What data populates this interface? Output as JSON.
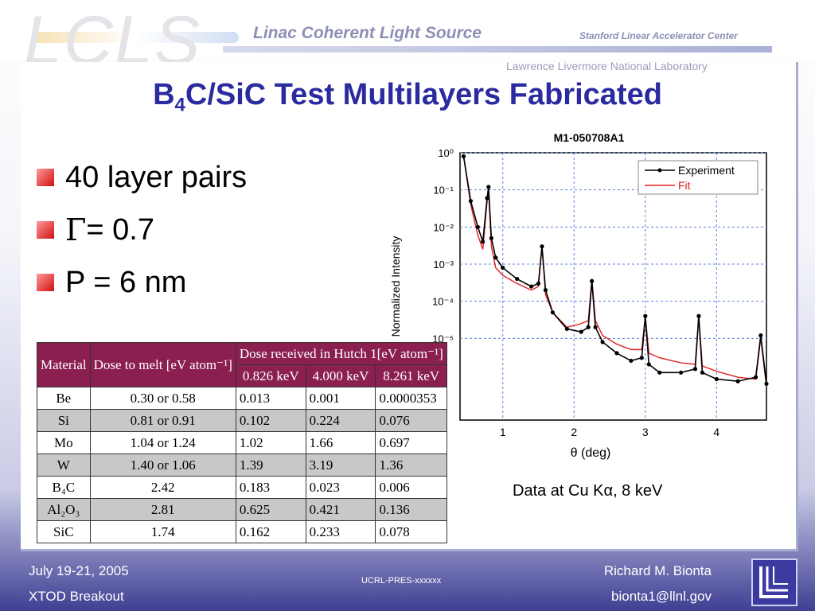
{
  "header": {
    "logo_text": "LCLS",
    "subtitle": "Linac Coherent Light Source",
    "org": "Stanford Linear Accelerator Center",
    "lab": "Lawrence Livermore National Laboratory"
  },
  "slide": {
    "title_pre": "B",
    "title_sub": "4",
    "title_post": "C/SiC Test Multilayers Fabricated",
    "bullets": [
      {
        "text": "40 layer pairs"
      },
      {
        "symbol": "Γ",
        "text": " = 0.7"
      },
      {
        "text": "P = 6 nm"
      }
    ],
    "caption": "Data at Cu Kα, 8 keV"
  },
  "table": {
    "header_material": "Material",
    "header_dose_melt": "Dose to melt [eV atom⁻¹]",
    "header_dose_hutch": "Dose received in Hutch 1[eV atom⁻¹]",
    "energies": [
      "0.826 keV",
      "4.000 keV",
      "8.261 keV"
    ],
    "rows": [
      {
        "material": "Be",
        "melt": "0.30  or 0.58",
        "e1": "0.013",
        "e2": "0.001",
        "e3": "0.0000353"
      },
      {
        "material": "Si",
        "melt": "0.81 or 0.91",
        "e1": "0.102",
        "e2": "0.224",
        "e3": "0.076"
      },
      {
        "material": "Mo",
        "melt": "1.04 or 1.24",
        "e1": "1.02",
        "e2": "1.66",
        "e3": "0.697"
      },
      {
        "material": "W",
        "melt": "1.40 or 1.06",
        "e1": "1.39",
        "e2": "3.19",
        "e3": "1.36"
      },
      {
        "material": "B₄C",
        "melt": "2.42",
        "e1": "0.183",
        "e2": "0.023",
        "e3": "0.006"
      },
      {
        "material": "Al₂O₃",
        "melt": "2.81",
        "e1": "0.625",
        "e2": "0.421",
        "e3": "0.136"
      },
      {
        "material": "SiC",
        "melt": "1.74",
        "e1": "0.162",
        "e2": "0.233",
        "e3": "0.078"
      }
    ]
  },
  "chart_data": {
    "type": "line",
    "title": "M1-050708A1",
    "xlabel": "θ (deg)",
    "ylabel": "Normalized Intensity",
    "xlim": [
      0.4,
      4.7
    ],
    "ylim_log10": [
      -7.2,
      0
    ],
    "yscale": "log",
    "x_ticks": [
      "1",
      "2",
      "3",
      "4"
    ],
    "y_ticks": [
      "10⁰",
      "10⁻¹",
      "10⁻²",
      "10⁻³",
      "10⁻⁴",
      "10⁻⁵"
    ],
    "legend_position": "top-right",
    "series": [
      {
        "name": "Experiment",
        "color": "#000000",
        "x": [
          0.45,
          0.55,
          0.65,
          0.72,
          0.78,
          0.8,
          0.84,
          0.9,
          1.0,
          1.2,
          1.4,
          1.5,
          1.55,
          1.6,
          1.7,
          1.9,
          2.1,
          2.2,
          2.25,
          2.3,
          2.4,
          2.6,
          2.8,
          2.95,
          3.0,
          3.05,
          3.2,
          3.5,
          3.7,
          3.75,
          3.8,
          4.0,
          4.3,
          4.55,
          4.62,
          4.7
        ],
        "y": [
          0.8,
          0.05,
          0.01,
          0.004,
          0.06,
          0.12,
          0.005,
          0.0015,
          0.0008,
          0.0004,
          0.00025,
          0.0003,
          0.003,
          0.0002,
          5e-05,
          1.8e-05,
          1.5e-05,
          2e-05,
          0.00035,
          2e-05,
          8e-06,
          4e-06,
          2.5e-06,
          3e-06,
          4e-05,
          2e-06,
          1.2e-06,
          1.2e-06,
          1.5e-06,
          4e-05,
          1.2e-06,
          8e-07,
          7e-07,
          9e-07,
          1.2e-05,
          6e-07
        ]
      },
      {
        "name": "Fit",
        "color": "#e02020",
        "x": [
          0.45,
          0.55,
          0.65,
          0.72,
          0.78,
          0.8,
          0.84,
          0.9,
          1.0,
          1.2,
          1.4,
          1.5,
          1.55,
          1.6,
          1.7,
          1.9,
          2.1,
          2.2,
          2.25,
          2.3,
          2.4,
          2.6,
          2.8,
          2.95,
          3.0,
          3.05,
          3.2,
          3.5,
          3.7,
          3.75,
          3.8,
          4.0,
          4.3,
          4.55,
          4.62,
          4.7
        ],
        "y": [
          0.8,
          0.04,
          0.006,
          0.0025,
          0.05,
          0.1,
          0.003,
          0.0008,
          0.0005,
          0.0003,
          0.0002,
          0.00025,
          0.003,
          0.00015,
          5e-05,
          2e-05,
          2.5e-05,
          3e-05,
          0.0004,
          3e-05,
          1.2e-05,
          7e-06,
          5e-06,
          5e-06,
          4e-05,
          4e-06,
          3e-06,
          2.2e-06,
          2e-06,
          4e-05,
          1.8e-06,
          1.3e-06,
          9e-07,
          8e-07,
          1e-05,
          5e-07
        ]
      }
    ]
  },
  "footer": {
    "date": "July 19-21, 2005",
    "session": "XTOD Breakout",
    "report": "UCRL-PRES-xxxxxx",
    "author": "Richard M. Bionta",
    "email": "bionta1@llnl.gov"
  }
}
